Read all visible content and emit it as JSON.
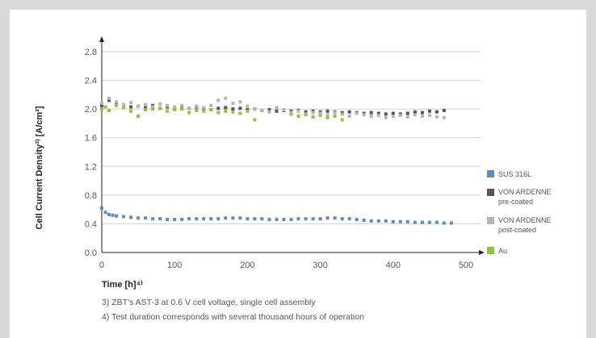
{
  "chart_data": {
    "type": "scatter",
    "title": "",
    "xlabel": "Time [h]⁴⁾",
    "ylabel": "Cell Current Density³⁾ [A/cm²]",
    "xlim": [
      0,
      500
    ],
    "ylim": [
      0,
      2.8
    ],
    "x_ticks": [
      "0",
      "100",
      "200",
      "300",
      "400",
      "500"
    ],
    "y_ticks": [
      "0.0",
      "0.4",
      "0.8",
      "1.2",
      "1.6",
      "2.0",
      "2.4",
      "2.8"
    ],
    "grid": "horizontal",
    "legend_position": "right",
    "series": [
      {
        "name": "SUS 316L",
        "color": "#5b8db8",
        "x": [
          0,
          5,
          10,
          15,
          20,
          30,
          40,
          50,
          60,
          70,
          80,
          90,
          100,
          110,
          120,
          130,
          140,
          150,
          160,
          170,
          180,
          190,
          200,
          210,
          220,
          230,
          240,
          250,
          260,
          270,
          280,
          290,
          300,
          310,
          320,
          330,
          340,
          350,
          360,
          370,
          380,
          390,
          400,
          410,
          420,
          430,
          440,
          450,
          460,
          470,
          480
        ],
        "y": [
          0.62,
          0.56,
          0.53,
          0.52,
          0.51,
          0.5,
          0.49,
          0.48,
          0.48,
          0.47,
          0.47,
          0.46,
          0.46,
          0.46,
          0.47,
          0.47,
          0.47,
          0.47,
          0.47,
          0.48,
          0.48,
          0.48,
          0.47,
          0.47,
          0.47,
          0.46,
          0.46,
          0.46,
          0.46,
          0.47,
          0.47,
          0.47,
          0.47,
          0.48,
          0.48,
          0.47,
          0.47,
          0.46,
          0.45,
          0.44,
          0.44,
          0.44,
          0.43,
          0.43,
          0.43,
          0.42,
          0.42,
          0.42,
          0.42,
          0.41,
          0.41
        ]
      },
      {
        "name": "VON ARDENNE pre-coated",
        "color": "#555555",
        "x": [
          0,
          10,
          20,
          30,
          40,
          50,
          60,
          70,
          80,
          90,
          100,
          110,
          120,
          130,
          140,
          150,
          160,
          170,
          180,
          190,
          200,
          210,
          220,
          230,
          240,
          250,
          260,
          270,
          280,
          290,
          300,
          310,
          320,
          330,
          340,
          350,
          360,
          370,
          380,
          390,
          400,
          410,
          420,
          430,
          440,
          450,
          460,
          470
        ],
        "y": [
          2.05,
          2.12,
          2.08,
          2.06,
          2.03,
          2.04,
          2.02,
          2.05,
          2.01,
          2.03,
          2.0,
          2.02,
          2.01,
          2.03,
          2.0,
          1.99,
          2.01,
          2.02,
          2.0,
          2.01,
          1.99,
          2.0,
          1.98,
          1.99,
          1.97,
          1.98,
          1.97,
          1.98,
          1.96,
          1.97,
          1.96,
          1.97,
          1.96,
          1.95,
          1.96,
          1.95,
          1.94,
          1.95,
          1.94,
          1.93,
          1.94,
          1.93,
          1.94,
          1.96,
          1.95,
          1.97,
          1.96,
          1.98
        ]
      },
      {
        "name": "VON ARDENNE post-coated",
        "color": "#b5b5b5",
        "x": [
          0,
          10,
          20,
          30,
          40,
          50,
          60,
          70,
          80,
          90,
          100,
          110,
          120,
          130,
          140,
          150,
          160,
          170,
          180,
          190,
          200,
          210,
          220,
          230,
          240,
          250,
          260,
          270,
          280,
          290,
          300,
          310,
          320,
          330,
          340,
          350,
          360,
          370,
          380,
          390,
          400,
          410,
          420,
          430,
          440,
          450,
          460,
          470
        ],
        "y": [
          2.08,
          2.15,
          2.1,
          2.06,
          2.09,
          2.04,
          2.06,
          2.03,
          2.07,
          2.05,
          2.03,
          2.05,
          2.01,
          2.04,
          2.02,
          2.05,
          2.12,
          2.15,
          2.08,
          2.1,
          2.04,
          2.0,
          1.98,
          1.96,
          2.02,
          1.99,
          1.95,
          1.97,
          1.93,
          1.95,
          1.94,
          1.92,
          1.95,
          1.93,
          1.9,
          1.94,
          1.92,
          1.9,
          1.91,
          1.88,
          1.9,
          1.91,
          1.89,
          1.92,
          1.9,
          1.91,
          1.89,
          1.88
        ]
      },
      {
        "name": "Au",
        "color": "#8cc63f",
        "x": [
          0,
          5,
          10,
          20,
          30,
          40,
          50,
          60,
          70,
          80,
          90,
          100,
          110,
          120,
          130,
          140,
          150,
          160,
          170,
          180,
          190,
          200,
          210,
          260,
          270,
          280,
          290,
          300,
          310,
          320,
          330
        ],
        "y": [
          2.0,
          2.03,
          1.98,
          2.05,
          2.02,
          1.97,
          1.9,
          1.99,
          2.0,
          2.01,
          1.97,
          1.99,
          2.0,
          1.95,
          1.98,
          1.97,
          1.99,
          1.95,
          1.97,
          1.96,
          1.94,
          1.97,
          1.85,
          1.93,
          1.9,
          1.92,
          1.89,
          1.91,
          1.88,
          1.9,
          1.85
        ]
      }
    ]
  },
  "legend": {
    "items": [
      {
        "line1": "SUS 316L",
        "line2": "",
        "color": "#5b8db8"
      },
      {
        "line1": "VON ARDENNE",
        "line2": "pre-coated",
        "color": "#555555"
      },
      {
        "line1": "VON ARDENNE",
        "line2": "post-coated",
        "color": "#b5b5b5"
      },
      {
        "line1": "Au",
        "line2": "",
        "color": "#8cc63f"
      }
    ]
  },
  "footnotes": {
    "note3": "3) ZBT's AST-3 at 0.6 V cell voltage, single cell assembly",
    "note4": "4) Test duration corresponds with several thousand hours of operation"
  },
  "colors": {
    "background": "#d9d9d9",
    "card": "#ffffff",
    "grid": "#d0d0d0",
    "axis": "#222222"
  }
}
